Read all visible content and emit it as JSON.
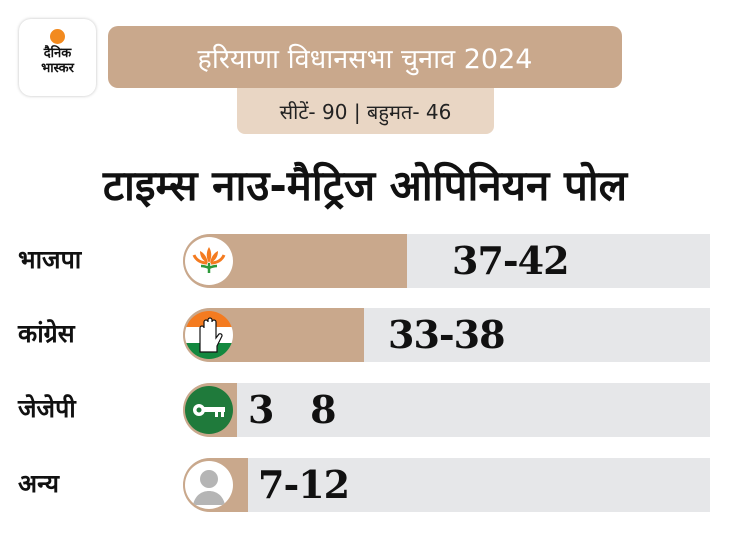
{
  "logo": {
    "line1": "दैनिक",
    "line2": "भास्कर"
  },
  "header": {
    "title": "हरियाणा विधानसभा चुनाव 2024",
    "subtitle": "सीटें- 90 | बहुमत- 46"
  },
  "colors": {
    "title_bg": "#c9a88c",
    "subtitle_bg": "#e9d6c4",
    "fill": "#c9a88c",
    "track": "#e6e7e9"
  },
  "chart_data": {
    "type": "bar",
    "title": "टाइम्स नाउ-मैट्रिज ओपिनियन पोल",
    "categories": [
      "भाजपा",
      "कांग्रेस",
      "जेजेपी",
      "अन्य"
    ],
    "labels": [
      "37-42",
      "33-38",
      "3   8",
      "7-12"
    ],
    "ranges": [
      [
        37,
        42
      ],
      [
        33,
        38
      ],
      [
        3,
        8
      ],
      [
        7,
        12
      ]
    ],
    "fill_fraction": [
      0.425,
      0.343,
      0.103,
      0.123
    ],
    "icons": [
      "lotus-icon",
      "hand-icon",
      "key-icon",
      "person-icon"
    ]
  }
}
